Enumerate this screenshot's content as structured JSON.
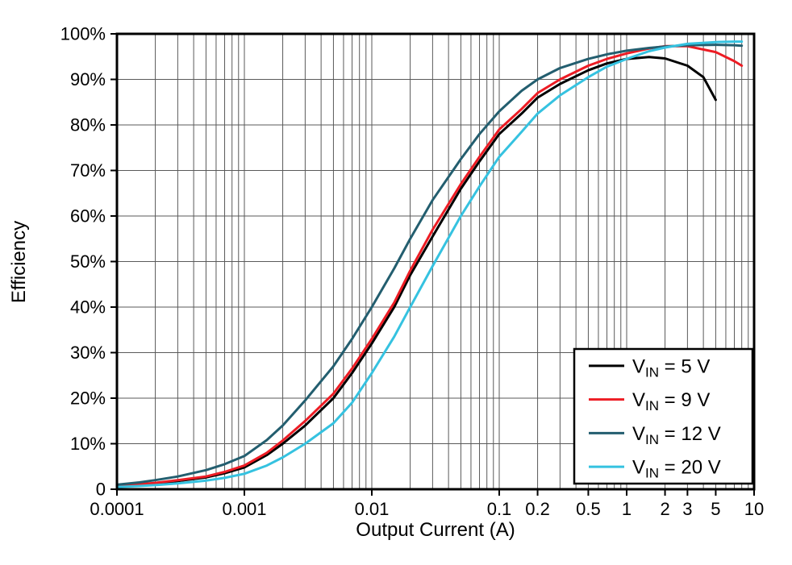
{
  "chart_data": {
    "type": "line",
    "title": "",
    "xlabel": "Output Current (A)",
    "ylabel": "Efficiency",
    "x_scale": "log",
    "xlim": [
      0.0001,
      10
    ],
    "ylim": [
      0,
      100
    ],
    "grid": "on",
    "legend_position": "bottom-right",
    "frame_color": "#000000",
    "grid_color": "#5a5a5a",
    "x_ticks": [
      {
        "v": 0.0001,
        "label": "0.0001"
      },
      {
        "v": 0.001,
        "label": "0.001"
      },
      {
        "v": 0.01,
        "label": "0.01"
      },
      {
        "v": 0.1,
        "label": "0.1"
      },
      {
        "v": 0.2,
        "label": "0.2"
      },
      {
        "v": 0.5,
        "label": "0.5"
      },
      {
        "v": 1,
        "label": "1"
      },
      {
        "v": 2,
        "label": "2"
      },
      {
        "v": 3,
        "label": "3"
      },
      {
        "v": 5,
        "label": "5"
      },
      {
        "v": 10,
        "label": "10"
      }
    ],
    "y_ticks": [
      {
        "v": 0,
        "label": "0"
      },
      {
        "v": 10,
        "label": "10%"
      },
      {
        "v": 20,
        "label": "20%"
      },
      {
        "v": 30,
        "label": "30%"
      },
      {
        "v": 40,
        "label": "40%"
      },
      {
        "v": 50,
        "label": "50%"
      },
      {
        "v": 60,
        "label": "60%"
      },
      {
        "v": 70,
        "label": "70%"
      },
      {
        "v": 80,
        "label": "80%"
      },
      {
        "v": 90,
        "label": "90%"
      },
      {
        "v": 100,
        "label": "100%"
      }
    ],
    "series": [
      {
        "name": "VIN = 5 V",
        "label_main": "V",
        "label_sub": "IN",
        "label_rest": " = 5 V",
        "color": "#000000",
        "points": [
          [
            0.0001,
            0.7
          ],
          [
            0.00015,
            1.0
          ],
          [
            0.0002,
            1.3
          ],
          [
            0.0003,
            1.8
          ],
          [
            0.0005,
            2.6
          ],
          [
            0.0007,
            3.5
          ],
          [
            0.001,
            4.8
          ],
          [
            0.0015,
            7.5
          ],
          [
            0.002,
            10
          ],
          [
            0.003,
            14
          ],
          [
            0.005,
            20
          ],
          [
            0.007,
            25.5
          ],
          [
            0.01,
            32
          ],
          [
            0.015,
            40
          ],
          [
            0.02,
            47
          ],
          [
            0.03,
            55.5
          ],
          [
            0.05,
            66
          ],
          [
            0.07,
            72
          ],
          [
            0.1,
            78
          ],
          [
            0.15,
            82.5
          ],
          [
            0.2,
            86
          ],
          [
            0.3,
            89
          ],
          [
            0.5,
            92
          ],
          [
            0.7,
            93.5
          ],
          [
            1,
            94.5
          ],
          [
            1.5,
            94.9
          ],
          [
            2,
            94.6
          ],
          [
            3,
            93
          ],
          [
            4,
            90.5
          ],
          [
            5,
            85.5
          ]
        ]
      },
      {
        "name": "VIN = 9 V",
        "label_main": "V",
        "label_sub": "IN",
        "label_rest": " = 9 V",
        "color": "#ed1c24",
        "points": [
          [
            0.0001,
            0.8
          ],
          [
            0.00015,
            1.1
          ],
          [
            0.0002,
            1.4
          ],
          [
            0.0003,
            2.0
          ],
          [
            0.0005,
            2.8
          ],
          [
            0.0007,
            3.8
          ],
          [
            0.001,
            5.2
          ],
          [
            0.0015,
            8.0
          ],
          [
            0.002,
            10.7
          ],
          [
            0.003,
            15
          ],
          [
            0.005,
            21
          ],
          [
            0.007,
            26.5
          ],
          [
            0.01,
            33
          ],
          [
            0.015,
            41
          ],
          [
            0.02,
            48
          ],
          [
            0.03,
            57
          ],
          [
            0.05,
            67
          ],
          [
            0.07,
            73
          ],
          [
            0.1,
            79
          ],
          [
            0.15,
            83.5
          ],
          [
            0.2,
            87
          ],
          [
            0.3,
            90
          ],
          [
            0.5,
            93
          ],
          [
            0.7,
            94.5
          ],
          [
            1,
            95.7
          ],
          [
            1.5,
            96.8
          ],
          [
            2,
            97.3
          ],
          [
            3,
            97.3
          ],
          [
            5,
            96
          ],
          [
            7,
            94
          ],
          [
            8,
            93
          ]
        ]
      },
      {
        "name": "VIN = 12 V",
        "label_main": "V",
        "label_sub": "IN",
        "label_rest": " = 12 V",
        "color": "#235e6f",
        "points": [
          [
            0.0001,
            1.0
          ],
          [
            0.00015,
            1.5
          ],
          [
            0.0002,
            2.0
          ],
          [
            0.0003,
            2.8
          ],
          [
            0.0005,
            4.2
          ],
          [
            0.0007,
            5.5
          ],
          [
            0.001,
            7.3
          ],
          [
            0.0015,
            10.8
          ],
          [
            0.002,
            14
          ],
          [
            0.003,
            19.5
          ],
          [
            0.005,
            27
          ],
          [
            0.007,
            33
          ],
          [
            0.01,
            40
          ],
          [
            0.015,
            48.5
          ],
          [
            0.02,
            55
          ],
          [
            0.03,
            63.5
          ],
          [
            0.05,
            72.5
          ],
          [
            0.07,
            78
          ],
          [
            0.1,
            83
          ],
          [
            0.15,
            87.5
          ],
          [
            0.2,
            90
          ],
          [
            0.3,
            92.5
          ],
          [
            0.5,
            94.5
          ],
          [
            0.7,
            95.5
          ],
          [
            1,
            96.3
          ],
          [
            1.5,
            96.9
          ],
          [
            2,
            97.2
          ],
          [
            3,
            97.5
          ],
          [
            5,
            97.6
          ],
          [
            7,
            97.5
          ],
          [
            8,
            97.4
          ]
        ]
      },
      {
        "name": "VIN = 20 V",
        "label_main": "V",
        "label_sub": "IN",
        "label_rest": " = 20 V",
        "color": "#35c2e0",
        "points": [
          [
            0.0001,
            0.5
          ],
          [
            0.00015,
            0.7
          ],
          [
            0.0002,
            0.9
          ],
          [
            0.0003,
            1.3
          ],
          [
            0.0005,
            1.9
          ],
          [
            0.0007,
            2.5
          ],
          [
            0.001,
            3.4
          ],
          [
            0.0015,
            5.2
          ],
          [
            0.002,
            7
          ],
          [
            0.003,
            10
          ],
          [
            0.005,
            14.5
          ],
          [
            0.007,
            19
          ],
          [
            0.01,
            25.5
          ],
          [
            0.015,
            33.5
          ],
          [
            0.02,
            40
          ],
          [
            0.03,
            49
          ],
          [
            0.05,
            60
          ],
          [
            0.07,
            66.5
          ],
          [
            0.1,
            73
          ],
          [
            0.15,
            78.5
          ],
          [
            0.2,
            82.5
          ],
          [
            0.3,
            86.5
          ],
          [
            0.5,
            90.5
          ],
          [
            0.7,
            92.8
          ],
          [
            1,
            94.5
          ],
          [
            1.5,
            96.2
          ],
          [
            2,
            97
          ],
          [
            3,
            97.8
          ],
          [
            5,
            98.2
          ],
          [
            7,
            98.3
          ],
          [
            8,
            98.3
          ]
        ]
      }
    ]
  }
}
